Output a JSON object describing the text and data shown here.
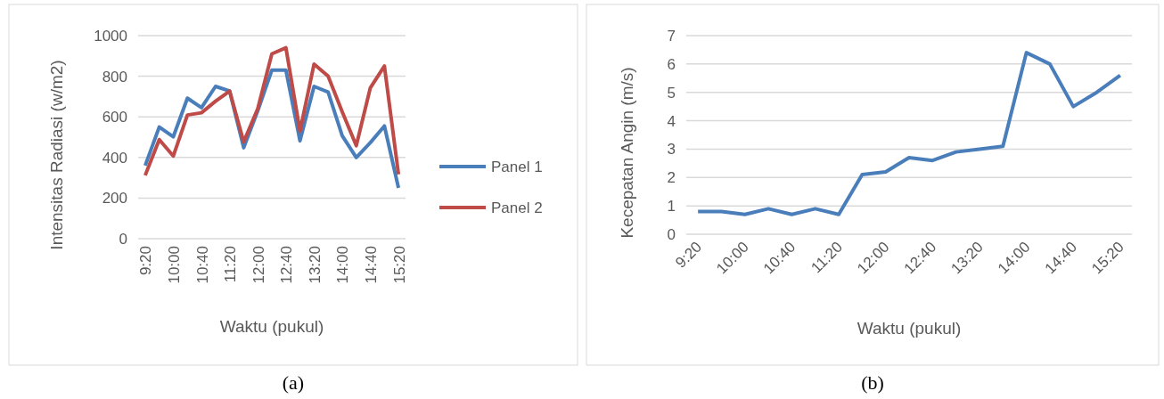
{
  "chart_data": [
    {
      "type": "line",
      "xlabel": "Waktu (pukul)",
      "ylabel": "Intensitas Radiasi (w/m2)",
      "categories": [
        "9:20",
        null,
        "10:00",
        null,
        "10:40",
        null,
        "11:20",
        null,
        "12:00",
        null,
        "12:40",
        null,
        "13:20",
        null,
        "14:00",
        null,
        "14:40",
        null,
        "15:20"
      ],
      "series": [
        {
          "name": "Panel 1",
          "color": "#4a7ebb",
          "values": [
            360,
            550,
            502,
            692,
            645,
            750,
            727,
            448,
            630,
            830,
            830,
            482,
            750,
            722,
            507,
            400,
            473,
            555,
            250
          ]
        },
        {
          "name": "Panel 2",
          "color": "#be4b48",
          "values": [
            312,
            488,
            407,
            609,
            620,
            677,
            727,
            477,
            640,
            910,
            940,
            530,
            860,
            800,
            625,
            458,
            743,
            850,
            317
          ]
        }
      ],
      "ylim": [
        0,
        1000
      ],
      "yticks": [
        0,
        200,
        400,
        600,
        800,
        1000
      ],
      "grid": "y",
      "legend": "right",
      "annotations": [
        "(a)"
      ]
    },
    {
      "type": "line",
      "xlabel": "Waktu (pukul)",
      "ylabel": "Kecepatan Angin (m/s)",
      "categories": [
        "9:20",
        null,
        "10:00",
        null,
        "10:40",
        null,
        "11:20",
        null,
        "12:00",
        null,
        "12:40",
        null,
        "13:20",
        null,
        "14:00",
        null,
        "14:40",
        null,
        "15:20"
      ],
      "series": [
        {
          "color": "#4a7ebb",
          "values": [
            0.8,
            0.8,
            0.7,
            0.9,
            0.7,
            0.9,
            0.7,
            2.1,
            2.2,
            2.7,
            2.6,
            2.9,
            3.0,
            3.1,
            6.4,
            6.0,
            4.5,
            5.0,
            5.6
          ]
        }
      ],
      "ylim": [
        0,
        7
      ],
      "yticks": [
        0,
        1,
        2,
        3,
        4,
        5,
        6,
        7
      ],
      "grid": "y",
      "legend": false,
      "annotations": [
        "(b)"
      ]
    }
  ]
}
